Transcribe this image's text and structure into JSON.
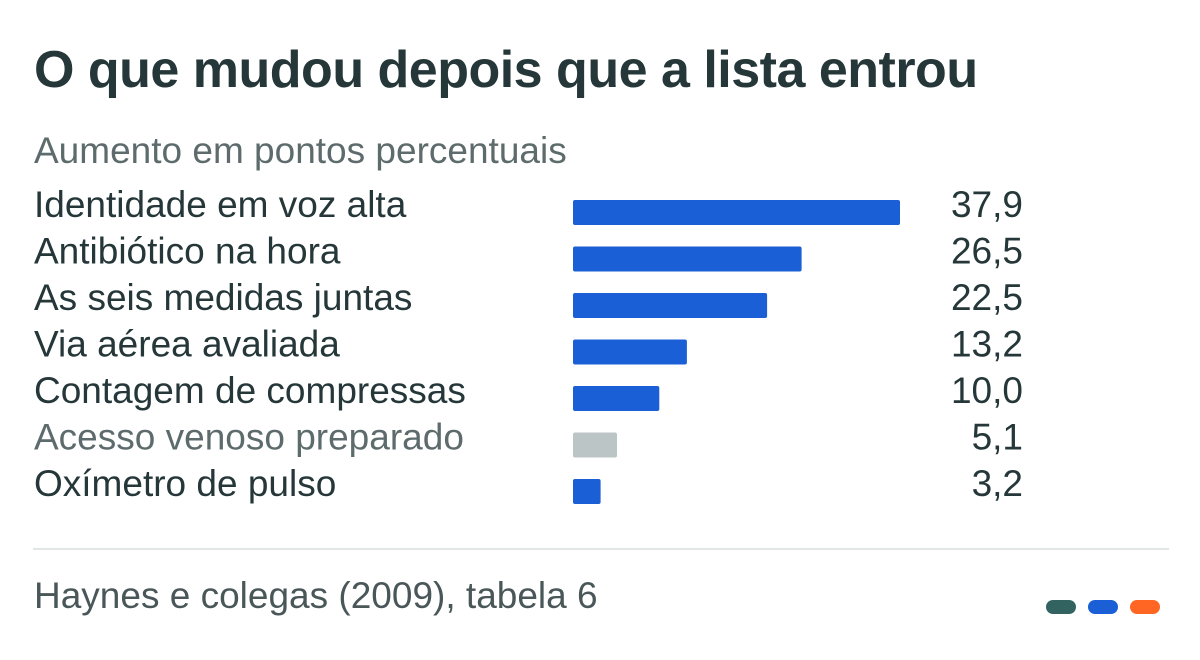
{
  "chart_data": {
    "type": "bar",
    "orientation": "horizontal",
    "title": "O que mudou depois que a lista entrou",
    "subtitle": "Aumento em pontos percentuais",
    "categories": [
      "Identidade em voz alta",
      "Antibiótico na hora",
      "As seis medidas juntas",
      "Via aérea avaliada",
      "Contagem de compressas",
      "Acesso venoso preparado",
      "Oxímetro de pulso"
    ],
    "values": [
      37.9,
      26.5,
      22.5,
      13.2,
      10.0,
      5.1,
      3.2
    ],
    "value_labels": [
      "37,9",
      "26,5",
      "22,5",
      "13,2",
      "10,0",
      "5,1",
      "3,2"
    ],
    "highlighted": [
      true,
      true,
      true,
      true,
      true,
      false,
      true
    ],
    "bar_color": "#1a5fd6",
    "muted_bar_color": "#bcc5c5",
    "xlim": [
      0,
      37.9
    ],
    "grid": false,
    "legend": "none"
  },
  "footer": {
    "source": "Haynes e colegas (2009), tabela 6"
  },
  "accent_colors": [
    "#336361",
    "#1a5fd6",
    "#ff6523"
  ]
}
